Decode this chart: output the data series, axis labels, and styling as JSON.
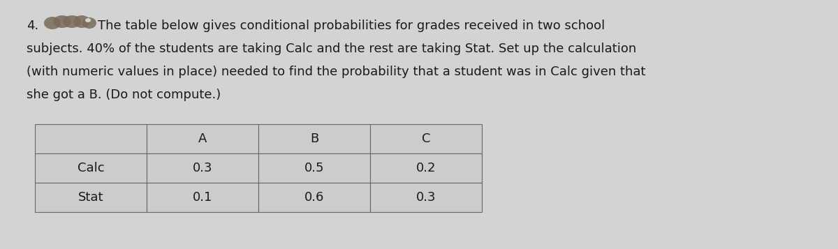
{
  "question_number": "4.",
  "question_text_line1": "The table below gives conditional probabilities for grades received in two school",
  "question_text_line2": "subjects. 40% of the students are taking Calc and the rest are taking Stat. Set up the calculation",
  "question_text_line3": "(with numeric values in place) needed to find the probability that a student was in Calc given that",
  "question_text_line4": "she got a B. (Do not compute.)",
  "table_headers": [
    "",
    "A",
    "B",
    "C"
  ],
  "table_rows": [
    [
      "Calc",
      "0.3",
      "0.5",
      "0.2"
    ],
    [
      "Stat",
      "0.1",
      "0.6",
      "0.3"
    ]
  ],
  "background_color": "#d3d3d3",
  "table_bg_color": "#cccccc",
  "text_color": "#1a1a1a",
  "font_size_text": 13.0,
  "font_size_table": 13.0
}
